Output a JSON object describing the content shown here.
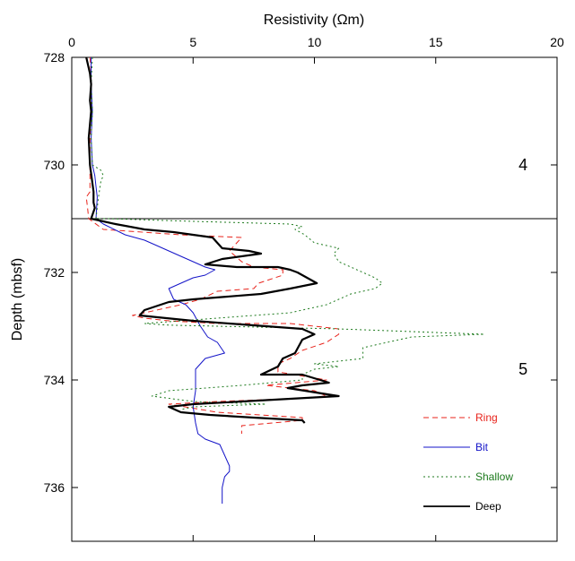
{
  "chart_data": {
    "type": "line",
    "title": "",
    "xlabel": "Resistivity (Ωm)",
    "ylabel": "Depth (mbsf)",
    "xlim": [
      0,
      20
    ],
    "ylim": [
      737,
      728
    ],
    "x_axis_position": "top",
    "xticks": [
      0,
      5,
      10,
      15,
      20
    ],
    "yticks": [
      728,
      730,
      732,
      734,
      736
    ],
    "boundary_depth": 731,
    "unit_labels": [
      {
        "text": "4",
        "depth": 730,
        "x": 18.6
      },
      {
        "text": "5",
        "depth": 733.8,
        "x": 18.6
      }
    ],
    "legend_position": "bottom-right",
    "series": [
      {
        "name": "Ring",
        "color": "#e8231b",
        "dash": "dashed",
        "points": [
          [
            0.75,
            728
          ],
          [
            0.8,
            728.3
          ],
          [
            0.8,
            729
          ],
          [
            0.75,
            729.5
          ],
          [
            0.75,
            730
          ],
          [
            0.75,
            730.5
          ],
          [
            0.6,
            730.6
          ],
          [
            0.65,
            730.8
          ],
          [
            0.7,
            731
          ],
          [
            1.3,
            731.2
          ],
          [
            4.5,
            731.3
          ],
          [
            7,
            731.35
          ],
          [
            6.5,
            731.6
          ],
          [
            7,
            731.8
          ],
          [
            7.5,
            731.9
          ],
          [
            8.7,
            731.95
          ],
          [
            8.7,
            732.05
          ],
          [
            7.7,
            732.2
          ],
          [
            7.5,
            732.3
          ],
          [
            6,
            732.35
          ],
          [
            5.3,
            732.5
          ],
          [
            4.5,
            732.6
          ],
          [
            3.5,
            732.7
          ],
          [
            2.5,
            732.8
          ],
          [
            3,
            732.85
          ],
          [
            4,
            732.9
          ],
          [
            6,
            732.95
          ],
          [
            9,
            732.95
          ],
          [
            11,
            733.05
          ],
          [
            11,
            733.15
          ],
          [
            10.5,
            733.3
          ],
          [
            9.5,
            733.45
          ],
          [
            9,
            733.6
          ],
          [
            8.5,
            733.7
          ],
          [
            8.5,
            733.85
          ],
          [
            10.5,
            734
          ],
          [
            8,
            734.1
          ],
          [
            10,
            734.2
          ],
          [
            10.5,
            734.3
          ],
          [
            9,
            734.35
          ],
          [
            6,
            734.4
          ],
          [
            4,
            734.45
          ],
          [
            6,
            734.6
          ],
          [
            9.5,
            734.7
          ],
          [
            9.5,
            734.75
          ],
          [
            7,
            734.85
          ],
          [
            7,
            735
          ]
        ]
      },
      {
        "name": "Bit",
        "color": "#1414c8",
        "dash": "solid",
        "points": [
          [
            0.8,
            728
          ],
          [
            0.8,
            728.5
          ],
          [
            0.85,
            729
          ],
          [
            0.8,
            729.5
          ],
          [
            0.85,
            730
          ],
          [
            0.95,
            730.2
          ],
          [
            1,
            730.4
          ],
          [
            1.05,
            730.6
          ],
          [
            1,
            731
          ],
          [
            1.3,
            731.1
          ],
          [
            2.2,
            731.3
          ],
          [
            3,
            731.4
          ],
          [
            3.5,
            731.5
          ],
          [
            4,
            731.6
          ],
          [
            4.5,
            731.7
          ],
          [
            5,
            731.8
          ],
          [
            5.5,
            731.9
          ],
          [
            5.9,
            731.95
          ],
          [
            5.5,
            732.05
          ],
          [
            5,
            732.1
          ],
          [
            4.5,
            732.2
          ],
          [
            4,
            732.3
          ],
          [
            4.2,
            732.5
          ],
          [
            4.7,
            732.6
          ],
          [
            5,
            732.75
          ],
          [
            5.3,
            733
          ],
          [
            5.6,
            733.2
          ],
          [
            6,
            733.3
          ],
          [
            6.3,
            733.5
          ],
          [
            5.5,
            733.6
          ],
          [
            5.1,
            733.8
          ],
          [
            5.1,
            734.2
          ],
          [
            5.0,
            734.5
          ],
          [
            5.1,
            734.8
          ],
          [
            5.2,
            735
          ],
          [
            5.5,
            735.1
          ],
          [
            6.1,
            735.2
          ],
          [
            6.3,
            735.4
          ],
          [
            6.5,
            735.6
          ],
          [
            6.5,
            735.7
          ],
          [
            6.3,
            735.8
          ],
          [
            6.2,
            736
          ],
          [
            6.2,
            736.3
          ]
        ]
      },
      {
        "name": "Shallow",
        "color": "#1d7a1d",
        "dash": "dotted",
        "points": [
          [
            0.85,
            728
          ],
          [
            0.8,
            728.5
          ],
          [
            0.85,
            729
          ],
          [
            0.8,
            729.5
          ],
          [
            0.85,
            730
          ],
          [
            1.2,
            730.1
          ],
          [
            1.3,
            730.2
          ],
          [
            1.2,
            730.3
          ],
          [
            1.1,
            730.6
          ],
          [
            1,
            731
          ],
          [
            1.5,
            731
          ],
          [
            5,
            731.05
          ],
          [
            9,
            731.1
          ],
          [
            9.5,
            731.15
          ],
          [
            9.2,
            731.2
          ],
          [
            9.6,
            731.3
          ],
          [
            10,
            731.45
          ],
          [
            11,
            731.55
          ],
          [
            10.8,
            731.65
          ],
          [
            11,
            731.8
          ],
          [
            11.5,
            731.9
          ],
          [
            12,
            732
          ],
          [
            12.5,
            732.1
          ],
          [
            12.8,
            732.2
          ],
          [
            12.5,
            732.3
          ],
          [
            11.5,
            732.4
          ],
          [
            11,
            732.5
          ],
          [
            10.5,
            732.6
          ],
          [
            9,
            732.75
          ],
          [
            6,
            732.85
          ],
          [
            3,
            732.95
          ],
          [
            4,
            732.98
          ],
          [
            11,
            733.05
          ],
          [
            14,
            733.1
          ],
          [
            17,
            733.15
          ],
          [
            14,
            733.2
          ],
          [
            13,
            733.3
          ],
          [
            12,
            733.4
          ],
          [
            12,
            733.6
          ],
          [
            10,
            733.7
          ],
          [
            11,
            733.75
          ],
          [
            10,
            733.8
          ],
          [
            9.5,
            733.9
          ],
          [
            9.5,
            734
          ],
          [
            7,
            734.1
          ],
          [
            4,
            734.2
          ],
          [
            3.3,
            734.3
          ],
          [
            5,
            734.4
          ],
          [
            8,
            734.45
          ],
          [
            5,
            734.5
          ],
          [
            4.5,
            734.55
          ]
        ]
      },
      {
        "name": "Deep",
        "color": "#000000",
        "dash": "solid",
        "points": [
          [
            0.6,
            728
          ],
          [
            0.75,
            728.3
          ],
          [
            0.8,
            728.5
          ],
          [
            0.75,
            728.8
          ],
          [
            0.8,
            729
          ],
          [
            0.7,
            729.5
          ],
          [
            0.75,
            730
          ],
          [
            0.9,
            730.5
          ],
          [
            0.9,
            730.7
          ],
          [
            0.95,
            730.8
          ],
          [
            0.8,
            731
          ],
          [
            1.8,
            731.1
          ],
          [
            3,
            731.2
          ],
          [
            4.2,
            731.25
          ],
          [
            5.8,
            731.35
          ],
          [
            6,
            731.45
          ],
          [
            6.2,
            731.55
          ],
          [
            7.3,
            731.6
          ],
          [
            7.8,
            731.65
          ],
          [
            6.2,
            731.75
          ],
          [
            5.5,
            731.85
          ],
          [
            6.8,
            731.9
          ],
          [
            8.5,
            731.9
          ],
          [
            9,
            731.95
          ],
          [
            9.3,
            732
          ],
          [
            9.7,
            732.1
          ],
          [
            10.1,
            732.2
          ],
          [
            9,
            732.3
          ],
          [
            7.8,
            732.4
          ],
          [
            5,
            732.5
          ],
          [
            4,
            732.55
          ],
          [
            3,
            732.7
          ],
          [
            2.8,
            732.8
          ],
          [
            5,
            732.9
          ],
          [
            9.5,
            733.05
          ],
          [
            10,
            733.15
          ],
          [
            9.5,
            733.25
          ],
          [
            9.2,
            733.5
          ],
          [
            8.7,
            733.6
          ],
          [
            8.5,
            733.75
          ],
          [
            7.8,
            733.9
          ],
          [
            9.5,
            733.9
          ],
          [
            10.6,
            734.05
          ],
          [
            9.5,
            734.1
          ],
          [
            8.9,
            734.15
          ],
          [
            11,
            734.3
          ],
          [
            9,
            734.35
          ],
          [
            5,
            734.45
          ],
          [
            4,
            734.5
          ],
          [
            4.5,
            734.6
          ],
          [
            5.7,
            734.65
          ],
          [
            7.5,
            734.7
          ],
          [
            9.5,
            734.75
          ],
          [
            9.6,
            734.8
          ]
        ]
      }
    ]
  }
}
